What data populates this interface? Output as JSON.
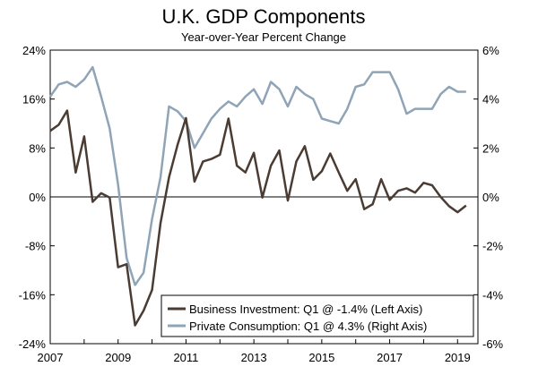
{
  "chart_data": {
    "type": "line",
    "title": "U.K. GDP Components",
    "subtitle": "Year-over-Year Percent Change",
    "colors": {
      "business": "#4a3c33",
      "consumption": "#8fa4b6",
      "zero_line": "#000000"
    },
    "x_tick_labels": [
      "2007",
      "2009",
      "2011",
      "2013",
      "2015",
      "2017",
      "2019"
    ],
    "x_range": [
      2007.0,
      2019.6
    ],
    "left_axis": {
      "range": [
        -24,
        24
      ],
      "ticks": [
        24,
        16,
        8,
        0,
        -8,
        -16,
        -24
      ],
      "tick_labels": [
        "24%",
        "16%",
        "8%",
        "0%",
        "-8%",
        "-16%",
        "-24%"
      ]
    },
    "right_axis": {
      "range": [
        -6,
        6
      ],
      "ticks": [
        6,
        4,
        2,
        0,
        -2,
        -4,
        -6
      ],
      "tick_labels": [
        "6%",
        "4%",
        "2%",
        "0%",
        "-2%",
        "-4%",
        "-6%"
      ]
    },
    "series": [
      {
        "name": "Business Investment",
        "axis": "left",
        "legend_label": "Business Investment: Q1 @ -1.4% (Left Axis)",
        "x": [
          2007.0,
          2007.25,
          2007.5,
          2007.75,
          2008.0,
          2008.25,
          2008.5,
          2008.75,
          2009.0,
          2009.25,
          2009.5,
          2009.75,
          2010.0,
          2010.25,
          2010.5,
          2010.75,
          2011.0,
          2011.25,
          2011.5,
          2011.75,
          2012.0,
          2012.25,
          2012.5,
          2012.75,
          2013.0,
          2013.25,
          2013.5,
          2013.75,
          2014.0,
          2014.25,
          2014.5,
          2014.75,
          2015.0,
          2015.25,
          2015.5,
          2015.75,
          2016.0,
          2016.25,
          2016.5,
          2016.75,
          2017.0,
          2017.25,
          2017.5,
          2017.75,
          2018.0,
          2018.25,
          2018.5,
          2018.75,
          2019.0,
          2019.25
        ],
        "values": [
          10.8,
          11.8,
          14.1,
          4.0,
          9.9,
          -0.8,
          0.6,
          -0.1,
          -11.5,
          -11.0,
          -21.0,
          -18.6,
          -15.2,
          -4.3,
          3.2,
          8.5,
          12.9,
          2.5,
          5.8,
          6.2,
          6.9,
          12.8,
          5.1,
          4.0,
          7.2,
          -0.1,
          5.1,
          7.6,
          -0.6,
          5.8,
          8.3,
          2.8,
          4.2,
          7.1,
          4.0,
          1.0,
          2.9,
          -2.0,
          -1.2,
          2.9,
          -0.5,
          1.0,
          1.4,
          0.7,
          2.3,
          1.9,
          0.0,
          -1.5,
          -2.5,
          -1.4
        ]
      },
      {
        "name": "Private Consumption",
        "axis": "right",
        "legend_label": "Private Consumption: Q1 @ 4.3% (Right Axis)",
        "x": [
          2007.0,
          2007.25,
          2007.5,
          2007.75,
          2008.0,
          2008.25,
          2008.5,
          2008.75,
          2009.0,
          2009.25,
          2009.5,
          2009.75,
          2010.0,
          2010.25,
          2010.5,
          2010.75,
          2011.0,
          2011.25,
          2011.5,
          2011.75,
          2012.0,
          2012.25,
          2012.5,
          2012.75,
          2013.0,
          2013.25,
          2013.5,
          2013.75,
          2014.0,
          2014.25,
          2014.5,
          2014.75,
          2015.0,
          2015.25,
          2015.5,
          2015.75,
          2016.0,
          2016.25,
          2016.5,
          2016.75,
          2017.0,
          2017.25,
          2017.5,
          2017.75,
          2018.0,
          2018.25,
          2018.5,
          2018.75,
          2019.0,
          2019.25
        ],
        "values": [
          4.1,
          4.6,
          4.7,
          4.5,
          4.8,
          5.3,
          4.1,
          2.8,
          0.5,
          -2.5,
          -3.6,
          -3.1,
          -0.9,
          0.8,
          3.7,
          3.5,
          3.1,
          2.0,
          2.6,
          3.2,
          3.6,
          3.9,
          3.7,
          4.1,
          4.4,
          3.8,
          4.7,
          4.4,
          3.7,
          4.5,
          4.2,
          4.0,
          3.2,
          3.1,
          3.0,
          3.6,
          4.5,
          4.6,
          5.1,
          5.1,
          5.1,
          4.4,
          3.4,
          3.6,
          3.6,
          3.6,
          4.2,
          4.5,
          4.3,
          4.3
        ]
      }
    ],
    "legend_position": "bottom-right"
  }
}
